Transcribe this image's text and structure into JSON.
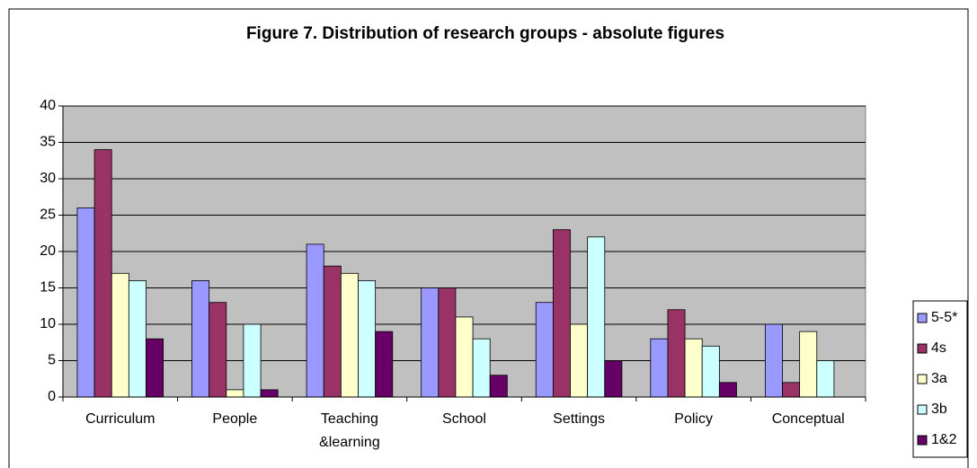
{
  "chart_data": {
    "type": "bar",
    "title": "Figure 7. Distribution of research groups - absolute figures",
    "categories": [
      "Curriculum",
      "People",
      "Teaching &learning",
      "School",
      "Settings",
      "Policy",
      "Conceptual"
    ],
    "series": [
      {
        "name": "5-5*",
        "color": "#9999ff",
        "values": [
          26,
          16,
          21,
          15,
          13,
          8,
          10
        ]
      },
      {
        "name": "4s",
        "color": "#993366",
        "values": [
          34,
          13,
          18,
          15,
          23,
          12,
          2
        ]
      },
      {
        "name": "3a",
        "color": "#ffffcc",
        "values": [
          17,
          1,
          17,
          11,
          10,
          8,
          9
        ]
      },
      {
        "name": "3b",
        "color": "#ccffff",
        "values": [
          16,
          10,
          16,
          8,
          22,
          7,
          5
        ]
      },
      {
        "name": "1&2",
        "color": "#660066",
        "values": [
          8,
          1,
          9,
          3,
          5,
          2,
          0
        ]
      }
    ],
    "ylim": [
      0,
      40
    ],
    "yticks": [
      0,
      5,
      10,
      15,
      20,
      25,
      30,
      35,
      40
    ],
    "grid": true,
    "legend": "right"
  }
}
